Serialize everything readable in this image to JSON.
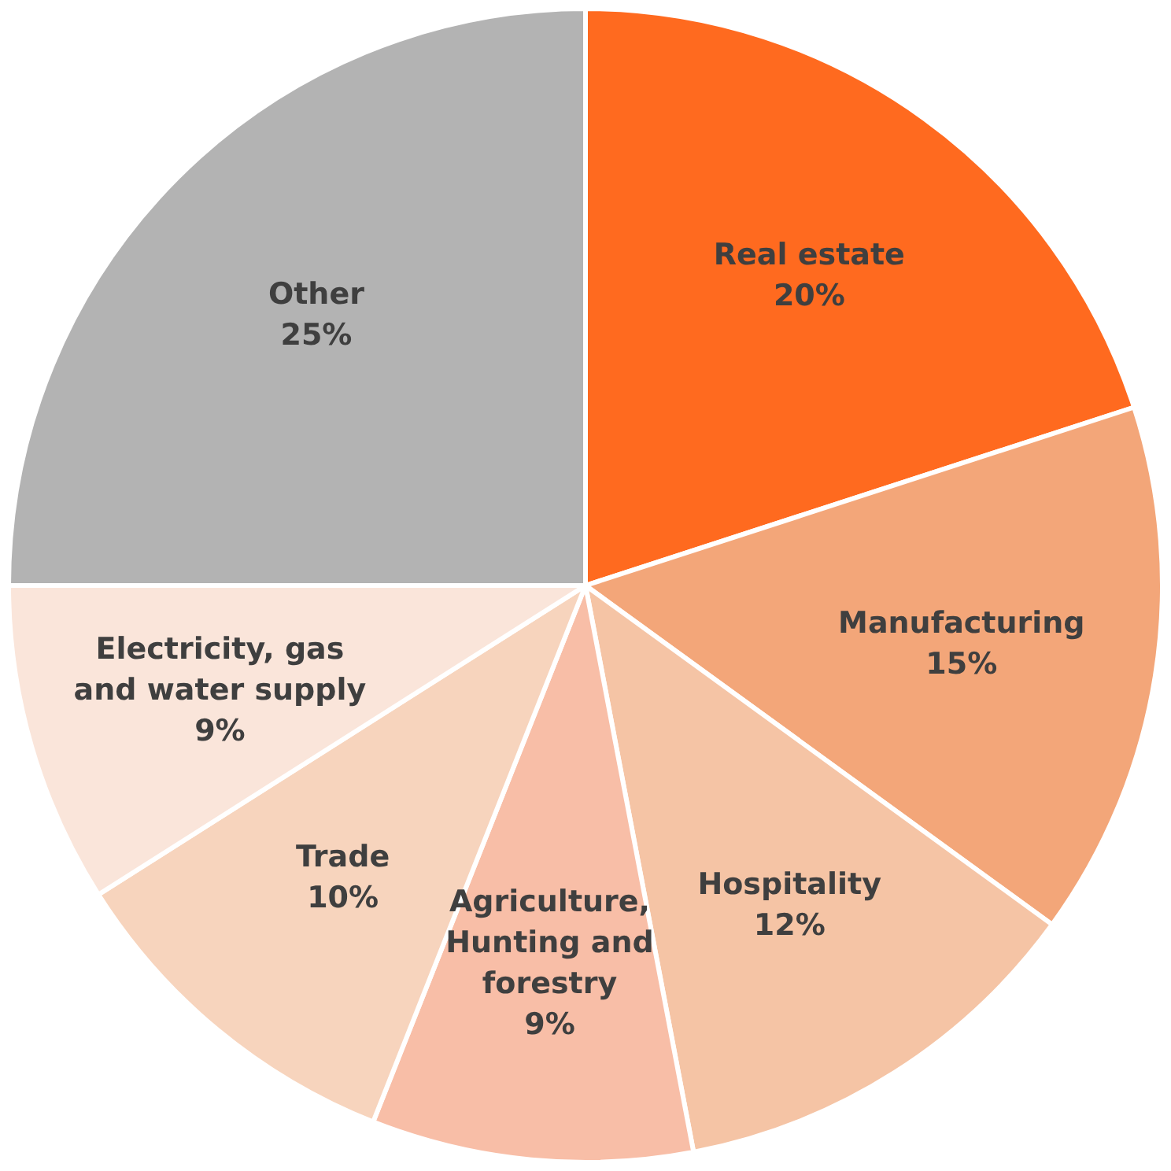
{
  "chart_data": {
    "type": "pie",
    "categories": [
      "Real estate",
      "Manufacturing",
      "Hospitality",
      "Agriculture, Hunting and forestry",
      "Trade",
      "Electricity, gas and water supply",
      "Other"
    ],
    "values": [
      20,
      15,
      12,
      9,
      10,
      9,
      25
    ],
    "colors": [
      "#ff6a1f",
      "#f3a679",
      "#f5c4a5",
      "#f8bea7",
      "#f7d4bd",
      "#fae5da",
      "#b3b3b3"
    ],
    "value_labels": [
      "20%",
      "15%",
      "12%",
      "9%",
      "10%",
      "9%",
      "25%"
    ],
    "legend": false
  }
}
